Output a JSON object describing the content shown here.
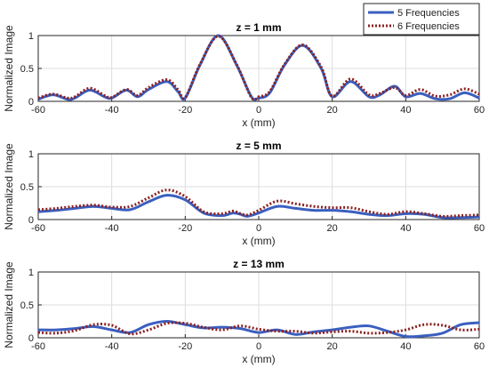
{
  "chart_data": [
    {
      "type": "line",
      "title": "z = 1 mm",
      "xlabel": "x (mm)",
      "ylabel": "Normalized Image",
      "xlim": [
        -60,
        60
      ],
      "ylim": [
        0,
        1
      ],
      "xticks": [
        "-60",
        "-40",
        "-20",
        "0",
        "20",
        "40",
        "60"
      ],
      "yticks": [
        "0",
        "0.5",
        "1"
      ],
      "grid": true,
      "legend": "top-right",
      "series": [
        {
          "name": "5 Frequencies",
          "color": "#3a5fbf",
          "style": "solid",
          "x": [
            -60,
            -56,
            -52,
            -50,
            -46,
            -42,
            -40,
            -36,
            -33,
            -30,
            -25,
            -22,
            -20,
            -16,
            -11,
            -6,
            -2,
            0,
            3,
            7,
            12,
            17,
            20,
            25,
            30,
            33,
            37,
            40,
            44,
            48,
            52,
            56,
            60
          ],
          "y": [
            0.03,
            0.1,
            0.03,
            0.05,
            0.17,
            0.07,
            0.05,
            0.17,
            0.07,
            0.18,
            0.3,
            0.15,
            0.05,
            0.55,
            1.0,
            0.55,
            0.07,
            0.05,
            0.13,
            0.55,
            0.85,
            0.5,
            0.07,
            0.3,
            0.07,
            0.1,
            0.23,
            0.07,
            0.12,
            0.04,
            0.04,
            0.13,
            0.05
          ]
        },
        {
          "name": "6 Frequencies",
          "color": "#8b2020",
          "style": "dotted",
          "x": [
            -60,
            -56,
            -52,
            -50,
            -46,
            -42,
            -40,
            -36,
            -33,
            -30,
            -25,
            -22,
            -20,
            -16,
            -11,
            -6,
            -2,
            0,
            3,
            7,
            12,
            17,
            20,
            25,
            30,
            33,
            37,
            40,
            44,
            48,
            52,
            56,
            60
          ],
          "y": [
            0.05,
            0.11,
            0.05,
            0.07,
            0.2,
            0.09,
            0.06,
            0.18,
            0.09,
            0.21,
            0.33,
            0.18,
            0.06,
            0.56,
            0.99,
            0.56,
            0.06,
            0.07,
            0.15,
            0.56,
            0.86,
            0.52,
            0.08,
            0.34,
            0.1,
            0.12,
            0.21,
            0.09,
            0.18,
            0.08,
            0.1,
            0.19,
            0.11
          ]
        }
      ]
    },
    {
      "type": "line",
      "title": "z = 5 mm",
      "xlabel": "x (mm)",
      "ylabel": "Normalized Image",
      "xlim": [
        -60,
        60
      ],
      "ylim": [
        0,
        1
      ],
      "xticks": [
        "-60",
        "-40",
        "-20",
        "0",
        "20",
        "40",
        "60"
      ],
      "yticks": [
        "0",
        "0.5",
        "1"
      ],
      "grid": true,
      "series": [
        {
          "name": "5 Frequencies",
          "color": "#3a5fbf",
          "style": "solid",
          "x": [
            -60,
            -55,
            -50,
            -45,
            -40,
            -35,
            -30,
            -25,
            -20,
            -15,
            -10,
            -7,
            -5,
            -3,
            0,
            5,
            10,
            15,
            20,
            25,
            30,
            35,
            40,
            45,
            50,
            55,
            60
          ],
          "y": [
            0.12,
            0.14,
            0.17,
            0.2,
            0.17,
            0.15,
            0.27,
            0.37,
            0.3,
            0.1,
            0.06,
            0.1,
            0.08,
            0.05,
            0.1,
            0.2,
            0.17,
            0.14,
            0.14,
            0.12,
            0.08,
            0.06,
            0.09,
            0.08,
            0.03,
            0.03,
            0.04
          ]
        },
        {
          "name": "6 Frequencies",
          "color": "#8b2020",
          "style": "dotted",
          "x": [
            -60,
            -55,
            -50,
            -45,
            -40,
            -35,
            -30,
            -25,
            -20,
            -15,
            -10,
            -7,
            -5,
            -3,
            0,
            5,
            10,
            15,
            20,
            25,
            30,
            35,
            40,
            45,
            50,
            55,
            60
          ],
          "y": [
            0.15,
            0.17,
            0.2,
            0.22,
            0.19,
            0.2,
            0.33,
            0.45,
            0.35,
            0.12,
            0.09,
            0.13,
            0.09,
            0.07,
            0.14,
            0.28,
            0.24,
            0.2,
            0.18,
            0.18,
            0.12,
            0.08,
            0.12,
            0.09,
            0.05,
            0.06,
            0.07
          ]
        }
      ]
    },
    {
      "type": "line",
      "title": "z = 13 mm",
      "xlabel": "x (mm)",
      "ylabel": "Normalized Image",
      "xlim": [
        -60,
        60
      ],
      "ylim": [
        0,
        1
      ],
      "xticks": [
        "-60",
        "-40",
        "-20",
        "0",
        "20",
        "40",
        "60"
      ],
      "yticks": [
        "0",
        "0.5",
        "1"
      ],
      "grid": true,
      "series": [
        {
          "name": "5 Frequencies",
          "color": "#3a5fbf",
          "style": "solid",
          "x": [
            -60,
            -55,
            -50,
            -45,
            -40,
            -35,
            -30,
            -25,
            -20,
            -15,
            -10,
            -5,
            0,
            5,
            10,
            15,
            20,
            25,
            30,
            35,
            40,
            45,
            50,
            55,
            60
          ],
          "y": [
            0.12,
            0.12,
            0.14,
            0.17,
            0.12,
            0.08,
            0.2,
            0.25,
            0.2,
            0.15,
            0.16,
            0.14,
            0.08,
            0.12,
            0.05,
            0.09,
            0.12,
            0.16,
            0.18,
            0.1,
            0.02,
            0.03,
            0.07,
            0.2,
            0.23
          ]
        },
        {
          "name": "6 Frequencies",
          "color": "#8b2020",
          "style": "dotted",
          "x": [
            -60,
            -55,
            -50,
            -45,
            -40,
            -35,
            -30,
            -25,
            -20,
            -15,
            -10,
            -5,
            0,
            5,
            10,
            15,
            20,
            25,
            30,
            35,
            40,
            45,
            50,
            55,
            60
          ],
          "y": [
            0.08,
            0.07,
            0.11,
            0.2,
            0.19,
            0.06,
            0.12,
            0.22,
            0.22,
            0.16,
            0.12,
            0.18,
            0.13,
            0.1,
            0.1,
            0.07,
            0.09,
            0.1,
            0.07,
            0.08,
            0.12,
            0.2,
            0.19,
            0.12,
            0.13
          ]
        }
      ]
    }
  ]
}
